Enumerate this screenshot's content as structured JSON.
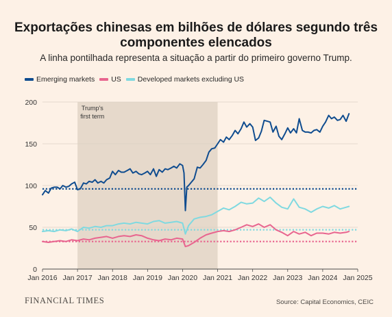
{
  "header": {
    "title": "Exportações chinesas em bilhões de dólares segundo três componentes elencados",
    "subtitle": "A linha pontilhada representa a situação a partir do primeiro governo Trump."
  },
  "footer": {
    "logo": "FINANCIAL TIMES",
    "source": "Source: Capital Economics, CEIC"
  },
  "colors": {
    "emerging": "#0f4c8f",
    "us": "#e8658f",
    "developed": "#7fd9e0",
    "shade": "#e6d9cb",
    "background": "#fdf1e6"
  },
  "chart_data": {
    "type": "line",
    "ylim": [
      0,
      200
    ],
    "yticks": [
      0,
      50,
      100,
      150,
      200
    ],
    "xlim": [
      2016,
      2025
    ],
    "xtick_values": [
      2016,
      2017,
      2018,
      2019,
      2020,
      2021,
      2022,
      2023,
      2024,
      2025
    ],
    "xtick_labels": [
      "Jan 2016",
      "Jan 2017",
      "Jan 2018",
      "Jan 2019",
      "Jan 2020",
      "Jan 2021",
      "Jan 2022",
      "Jan 2023",
      "Jan 2024",
      "Jan 2025"
    ],
    "grid": true,
    "legend_position": "top-left",
    "shaded_region": {
      "from": 2017,
      "to": 2021,
      "label_line1": "Trump's",
      "label_line2": "first term"
    },
    "reference_lines": [
      {
        "series": "Emerging markets",
        "value": 96
      },
      {
        "series": "Developed markets excluding US",
        "value": 47
      },
      {
        "series": "US",
        "value": 33
      }
    ],
    "series": [
      {
        "name": "Emerging markets",
        "x": [
          2016.0,
          2016.08,
          2016.17,
          2016.25,
          2016.33,
          2016.42,
          2016.5,
          2016.58,
          2016.67,
          2016.75,
          2016.83,
          2016.92,
          2017.0,
          2017.08,
          2017.17,
          2017.25,
          2017.33,
          2017.42,
          2017.5,
          2017.58,
          2017.67,
          2017.75,
          2017.83,
          2017.92,
          2018.0,
          2018.08,
          2018.17,
          2018.25,
          2018.33,
          2018.42,
          2018.5,
          2018.58,
          2018.67,
          2018.75,
          2018.83,
          2018.92,
          2019.0,
          2019.08,
          2019.17,
          2019.25,
          2019.33,
          2019.42,
          2019.5,
          2019.58,
          2019.67,
          2019.75,
          2019.83,
          2019.92,
          2020.0,
          2020.04,
          2020.08,
          2020.12,
          2020.17,
          2020.25,
          2020.33,
          2020.42,
          2020.5,
          2020.58,
          2020.67,
          2020.75,
          2020.83,
          2020.92,
          2021.0,
          2021.08,
          2021.17,
          2021.25,
          2021.33,
          2021.42,
          2021.5,
          2021.58,
          2021.67,
          2021.75,
          2021.83,
          2021.92,
          2022.0,
          2022.08,
          2022.17,
          2022.25,
          2022.33,
          2022.42,
          2022.5,
          2022.58,
          2022.67,
          2022.75,
          2022.83,
          2022.92,
          2023.0,
          2023.08,
          2023.17,
          2023.25,
          2023.33,
          2023.42,
          2023.5,
          2023.58,
          2023.67,
          2023.75,
          2023.83,
          2023.92,
          2024.0,
          2024.08,
          2024.17,
          2024.25,
          2024.33,
          2024.42,
          2024.5,
          2024.58,
          2024.67,
          2024.75
        ],
        "values": [
          89,
          94,
          91,
          97,
          98,
          98,
          96,
          100,
          98,
          99,
          102,
          104,
          95,
          96,
          103,
          102,
          105,
          104,
          107,
          103,
          105,
          103,
          107,
          109,
          117,
          113,
          118,
          116,
          116,
          118,
          120,
          115,
          117,
          114,
          113,
          115,
          117,
          113,
          120,
          111,
          119,
          116,
          120,
          119,
          121,
          123,
          121,
          126,
          124,
          115,
          70,
          98,
          100,
          104,
          108,
          122,
          121,
          125,
          130,
          140,
          144,
          145,
          150,
          155,
          152,
          158,
          155,
          160,
          166,
          162,
          168,
          176,
          170,
          174,
          170,
          154,
          157,
          165,
          178,
          177,
          176,
          164,
          171,
          159,
          155,
          162,
          169,
          163,
          168,
          163,
          180,
          166,
          164,
          164,
          163,
          166,
          167,
          164,
          171,
          176,
          184,
          180,
          182,
          178,
          179,
          184,
          177,
          186
        ]
      },
      {
        "name": "US",
        "x": [
          2016.0,
          2016.17,
          2016.33,
          2016.5,
          2016.67,
          2016.83,
          2017.0,
          2017.17,
          2017.33,
          2017.5,
          2017.67,
          2017.83,
          2018.0,
          2018.17,
          2018.33,
          2018.5,
          2018.67,
          2018.83,
          2019.0,
          2019.17,
          2019.33,
          2019.5,
          2019.67,
          2019.83,
          2020.0,
          2020.08,
          2020.17,
          2020.33,
          2020.5,
          2020.67,
          2020.83,
          2021.0,
          2021.17,
          2021.33,
          2021.5,
          2021.67,
          2021.83,
          2022.0,
          2022.17,
          2022.33,
          2022.5,
          2022.67,
          2022.83,
          2023.0,
          2023.17,
          2023.33,
          2023.5,
          2023.67,
          2023.83,
          2024.0,
          2024.17,
          2024.33,
          2024.5,
          2024.67,
          2024.75
        ],
        "values": [
          33,
          32,
          33,
          34,
          33,
          35,
          34,
          36,
          35,
          37,
          38,
          39,
          37,
          39,
          40,
          39,
          41,
          40,
          37,
          35,
          34,
          36,
          35,
          37,
          36,
          27,
          28,
          32,
          37,
          41,
          43,
          45,
          46,
          45,
          47,
          50,
          53,
          51,
          54,
          50,
          53,
          47,
          44,
          40,
          45,
          42,
          44,
          40,
          43,
          43,
          42,
          44,
          43,
          44,
          45
        ]
      },
      {
        "name": "Developed markets excluding US",
        "x": [
          2016.0,
          2016.17,
          2016.33,
          2016.5,
          2016.67,
          2016.83,
          2017.0,
          2017.17,
          2017.33,
          2017.5,
          2017.67,
          2017.83,
          2018.0,
          2018.17,
          2018.33,
          2018.5,
          2018.67,
          2018.83,
          2019.0,
          2019.17,
          2019.33,
          2019.5,
          2019.67,
          2019.83,
          2020.0,
          2020.08,
          2020.17,
          2020.33,
          2020.5,
          2020.67,
          2020.83,
          2021.0,
          2021.17,
          2021.33,
          2021.5,
          2021.67,
          2021.83,
          2022.0,
          2022.17,
          2022.33,
          2022.5,
          2022.67,
          2022.83,
          2023.0,
          2023.17,
          2023.33,
          2023.5,
          2023.67,
          2023.83,
          2024.0,
          2024.17,
          2024.33,
          2024.5,
          2024.67,
          2024.75
        ],
        "values": [
          45,
          46,
          45,
          47,
          46,
          48,
          45,
          50,
          49,
          51,
          50,
          52,
          52,
          54,
          55,
          54,
          56,
          55,
          54,
          57,
          58,
          55,
          56,
          57,
          55,
          42,
          52,
          60,
          62,
          63,
          65,
          69,
          73,
          71,
          75,
          80,
          78,
          79,
          85,
          81,
          86,
          79,
          74,
          72,
          84,
          74,
          72,
          68,
          72,
          75,
          73,
          76,
          72,
          74,
          75
        ]
      }
    ]
  }
}
